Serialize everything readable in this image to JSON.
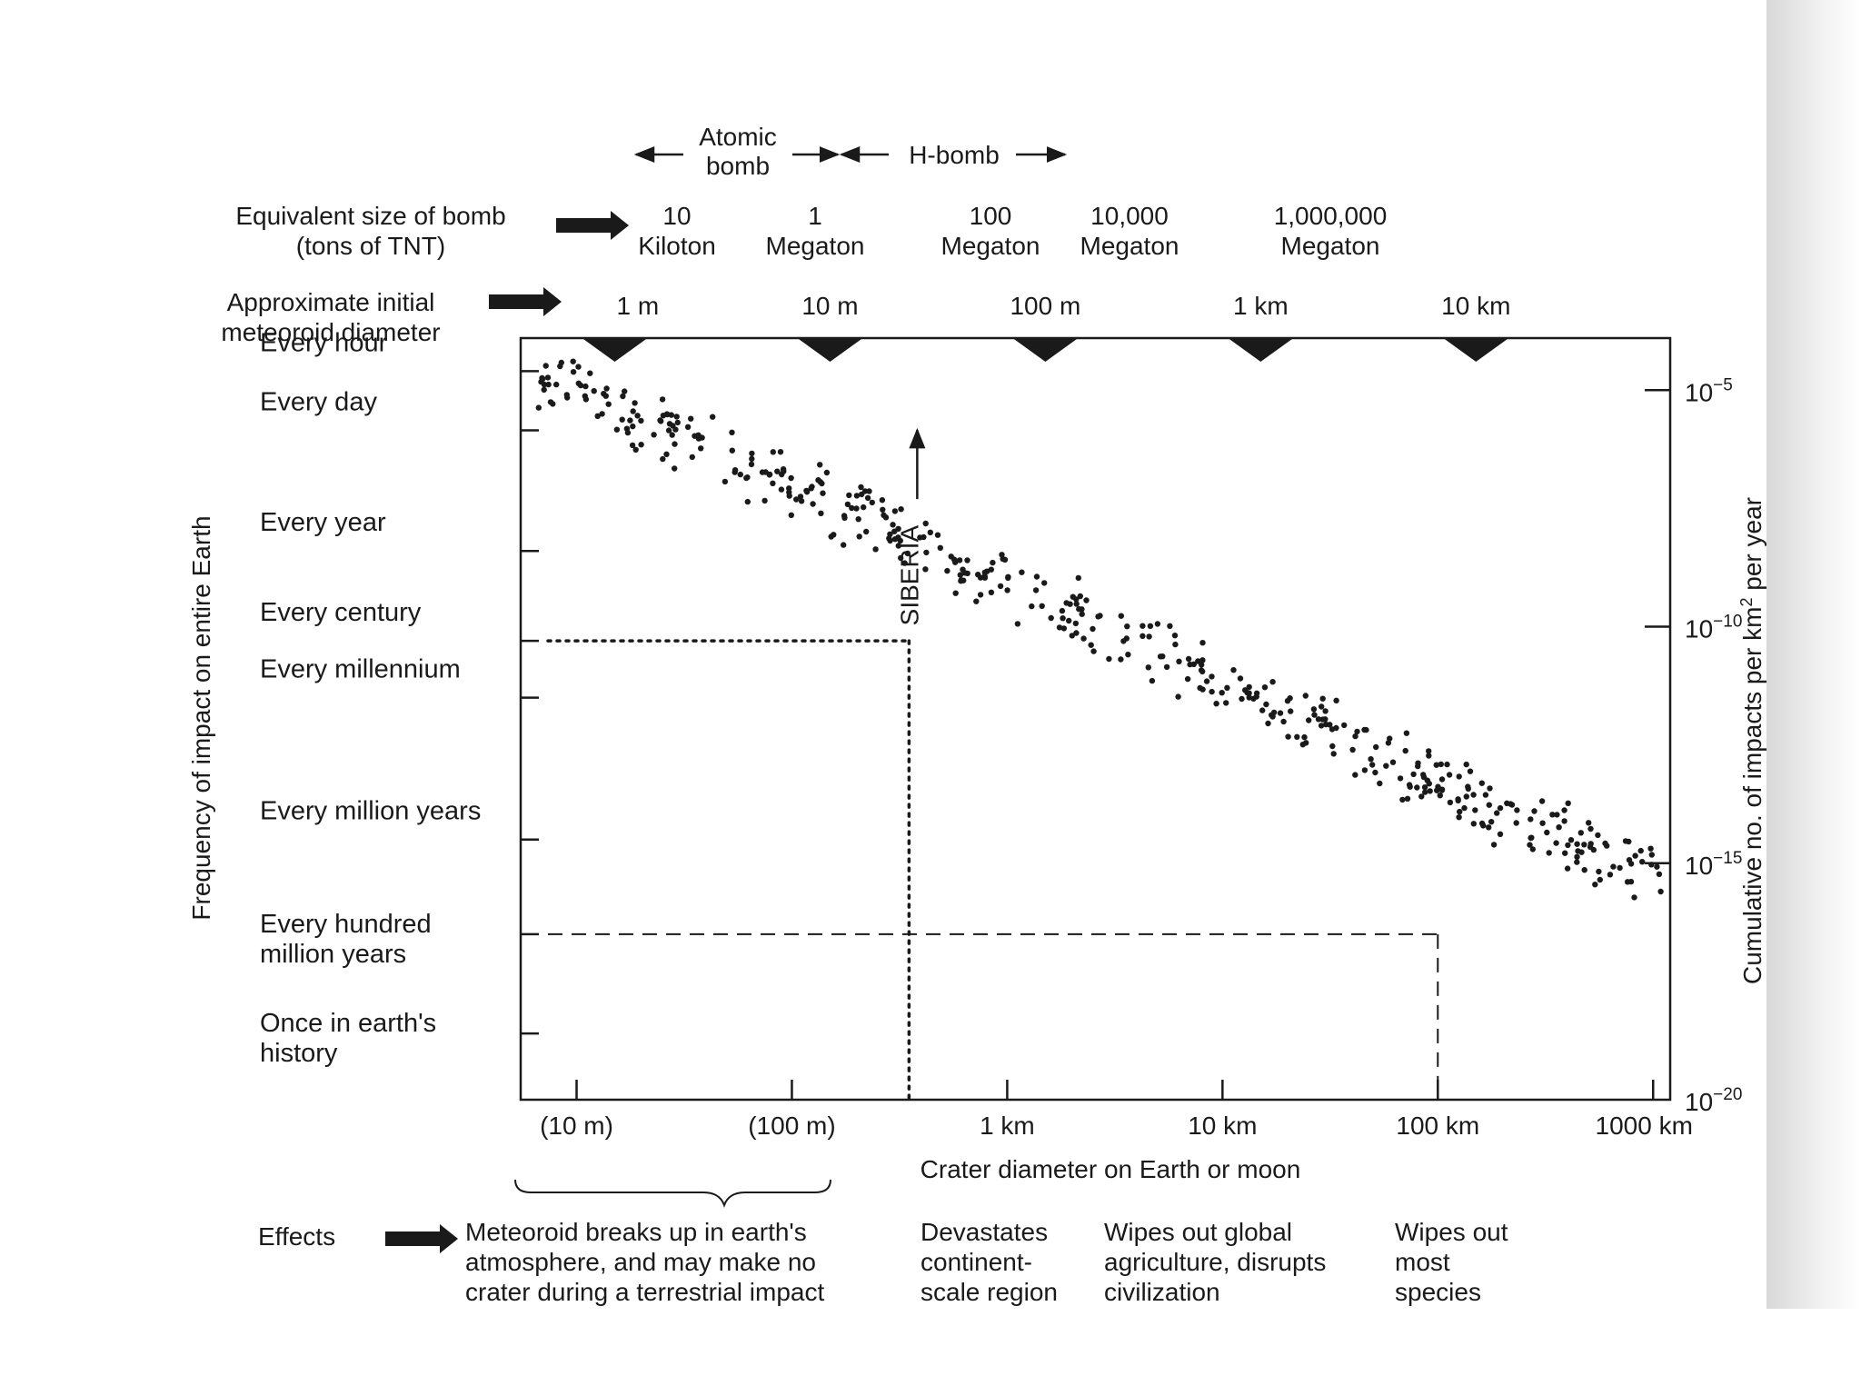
{
  "chart_data": {
    "type": "scatter",
    "title": "",
    "xlabel": "Crater diameter on Earth or moon",
    "ylabel_left": "Frequency of impact on entire Earth",
    "ylabel_right_parts": [
      "Cumulative no. of impacts per km",
      "2",
      " per year"
    ],
    "x_scale": "log",
    "x_unit": "km",
    "xlim": [
      0.0055,
      1200
    ],
    "ylim_log": [
      -20,
      -3.9
    ],
    "x_ticks": [
      {
        "value": 0.01,
        "label": "(10 m)"
      },
      {
        "value": 0.1,
        "label": "(100 m)"
      },
      {
        "value": 1,
        "label": "1 km"
      },
      {
        "value": 10,
        "label": "10 km"
      },
      {
        "value": 100,
        "label": "100 km"
      },
      {
        "value": 1000,
        "label": "1000 km"
      }
    ],
    "right_ticks": [
      {
        "exp": -5,
        "base": "10",
        "sup": "−5"
      },
      {
        "exp": -10,
        "base": "10",
        "sup": "−10"
      },
      {
        "exp": -15,
        "base": "10",
        "sup": "−15"
      },
      {
        "exp": -20,
        "base": "10",
        "sup": "−20"
      }
    ],
    "frequency_ticks": [
      {
        "exp": -4.6,
        "lines": [
          "Every hour"
        ]
      },
      {
        "exp": -5.85,
        "lines": [
          "Every day"
        ]
      },
      {
        "exp": -8.4,
        "lines": [
          "Every year"
        ]
      },
      {
        "exp": -10.3,
        "lines": [
          "Every century"
        ]
      },
      {
        "exp": -11.5,
        "lines": [
          "Every millennium"
        ]
      },
      {
        "exp": -14.5,
        "lines": [
          "Every million years"
        ]
      },
      {
        "exp": -16.5,
        "lines": [
          "Every hundred",
          "million years"
        ]
      },
      {
        "exp": -18.6,
        "lines": [
          "Once in earth's",
          "history"
        ]
      }
    ],
    "trend": {
      "x_start": 0.0055,
      "logy_start": -4.4,
      "slope_per_decade": -2.08,
      "scatter_count": 460
    },
    "meteoroid_markers": [
      {
        "x": 0.01,
        "label": "1 m"
      },
      {
        "x": 0.1,
        "label": "10 m"
      },
      {
        "x": 1,
        "label": "100 m"
      },
      {
        "x": 10,
        "label": "1 km"
      },
      {
        "x": 100,
        "label": "10 km"
      }
    ],
    "bomb_sizes": [
      {
        "lines": [
          "10",
          "Kiloton"
        ]
      },
      {
        "lines": [
          "1",
          "Megaton"
        ]
      },
      {
        "lines": [
          "100",
          "Megaton"
        ]
      },
      {
        "lines": [
          "10,000",
          "Megaton"
        ]
      },
      {
        "lines": [
          "1,000,000",
          "Megaton"
        ]
      }
    ],
    "bomb_ranges": {
      "atomic": [
        "Atomic",
        "bomb"
      ],
      "hbomb": "H-bomb"
    },
    "row_labels": {
      "bomb": [
        "Equivalent size of bomb",
        "(tons of TNT)"
      ],
      "meteoroid": [
        "Approximate initial",
        "meteoroid diameter"
      ],
      "effects": "Effects"
    },
    "annotations": {
      "siberia": {
        "label": "SIBERIA",
        "x": 0.35,
        "logy": -10.3
      },
      "reference": {
        "x": 100,
        "logy": -16.5
      }
    },
    "effects": [
      {
        "lines": [
          "Meteoroid breaks up in earth's",
          "atmosphere, and may make no",
          "crater during a terrestrial impact"
        ]
      },
      {
        "lines": [
          "Devastates",
          "continent-",
          "scale region"
        ]
      },
      {
        "lines": [
          "Wipes out global",
          "agriculture, disrupts",
          "civilization"
        ]
      },
      {
        "lines": [
          "Wipes out",
          "most",
          "species"
        ]
      }
    ]
  }
}
